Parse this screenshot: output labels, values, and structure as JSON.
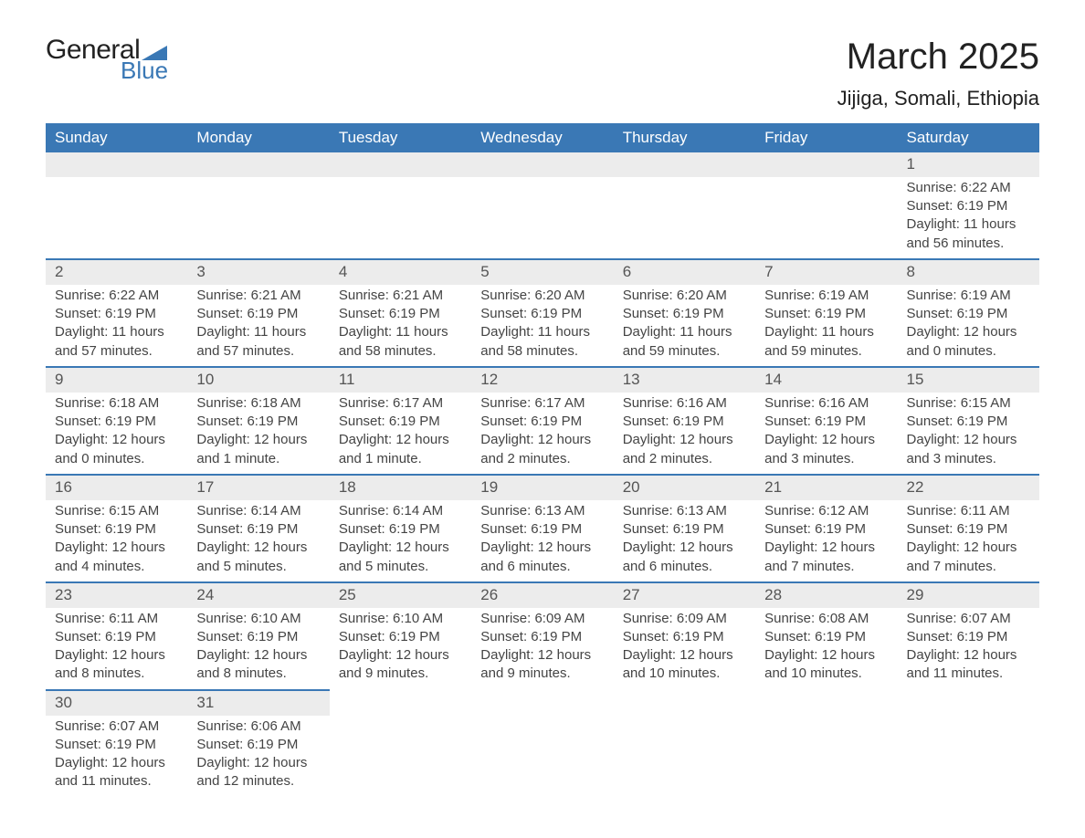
{
  "logo": {
    "text_general": "General",
    "text_blue": "Blue",
    "mark_color": "#3a78b5"
  },
  "header": {
    "month_title": "March 2025",
    "location": "Jijiga, Somali, Ethiopia"
  },
  "calendar": {
    "header_bg": "#3a78b5",
    "header_fg": "#ffffff",
    "daynum_bg": "#ececec",
    "row_border": "#3a78b5",
    "text_color": "#444444",
    "day_labels": [
      "Sunday",
      "Monday",
      "Tuesday",
      "Wednesday",
      "Thursday",
      "Friday",
      "Saturday"
    ],
    "weeks": [
      [
        null,
        null,
        null,
        null,
        null,
        null,
        {
          "n": "1",
          "sunrise": "Sunrise: 6:22 AM",
          "sunset": "Sunset: 6:19 PM",
          "day1": "Daylight: 11 hours",
          "day2": "and 56 minutes."
        }
      ],
      [
        {
          "n": "2",
          "sunrise": "Sunrise: 6:22 AM",
          "sunset": "Sunset: 6:19 PM",
          "day1": "Daylight: 11 hours",
          "day2": "and 57 minutes."
        },
        {
          "n": "3",
          "sunrise": "Sunrise: 6:21 AM",
          "sunset": "Sunset: 6:19 PM",
          "day1": "Daylight: 11 hours",
          "day2": "and 57 minutes."
        },
        {
          "n": "4",
          "sunrise": "Sunrise: 6:21 AM",
          "sunset": "Sunset: 6:19 PM",
          "day1": "Daylight: 11 hours",
          "day2": "and 58 minutes."
        },
        {
          "n": "5",
          "sunrise": "Sunrise: 6:20 AM",
          "sunset": "Sunset: 6:19 PM",
          "day1": "Daylight: 11 hours",
          "day2": "and 58 minutes."
        },
        {
          "n": "6",
          "sunrise": "Sunrise: 6:20 AM",
          "sunset": "Sunset: 6:19 PM",
          "day1": "Daylight: 11 hours",
          "day2": "and 59 minutes."
        },
        {
          "n": "7",
          "sunrise": "Sunrise: 6:19 AM",
          "sunset": "Sunset: 6:19 PM",
          "day1": "Daylight: 11 hours",
          "day2": "and 59 minutes."
        },
        {
          "n": "8",
          "sunrise": "Sunrise: 6:19 AM",
          "sunset": "Sunset: 6:19 PM",
          "day1": "Daylight: 12 hours",
          "day2": "and 0 minutes."
        }
      ],
      [
        {
          "n": "9",
          "sunrise": "Sunrise: 6:18 AM",
          "sunset": "Sunset: 6:19 PM",
          "day1": "Daylight: 12 hours",
          "day2": "and 0 minutes."
        },
        {
          "n": "10",
          "sunrise": "Sunrise: 6:18 AM",
          "sunset": "Sunset: 6:19 PM",
          "day1": "Daylight: 12 hours",
          "day2": "and 1 minute."
        },
        {
          "n": "11",
          "sunrise": "Sunrise: 6:17 AM",
          "sunset": "Sunset: 6:19 PM",
          "day1": "Daylight: 12 hours",
          "day2": "and 1 minute."
        },
        {
          "n": "12",
          "sunrise": "Sunrise: 6:17 AM",
          "sunset": "Sunset: 6:19 PM",
          "day1": "Daylight: 12 hours",
          "day2": "and 2 minutes."
        },
        {
          "n": "13",
          "sunrise": "Sunrise: 6:16 AM",
          "sunset": "Sunset: 6:19 PM",
          "day1": "Daylight: 12 hours",
          "day2": "and 2 minutes."
        },
        {
          "n": "14",
          "sunrise": "Sunrise: 6:16 AM",
          "sunset": "Sunset: 6:19 PM",
          "day1": "Daylight: 12 hours",
          "day2": "and 3 minutes."
        },
        {
          "n": "15",
          "sunrise": "Sunrise: 6:15 AM",
          "sunset": "Sunset: 6:19 PM",
          "day1": "Daylight: 12 hours",
          "day2": "and 3 minutes."
        }
      ],
      [
        {
          "n": "16",
          "sunrise": "Sunrise: 6:15 AM",
          "sunset": "Sunset: 6:19 PM",
          "day1": "Daylight: 12 hours",
          "day2": "and 4 minutes."
        },
        {
          "n": "17",
          "sunrise": "Sunrise: 6:14 AM",
          "sunset": "Sunset: 6:19 PM",
          "day1": "Daylight: 12 hours",
          "day2": "and 5 minutes."
        },
        {
          "n": "18",
          "sunrise": "Sunrise: 6:14 AM",
          "sunset": "Sunset: 6:19 PM",
          "day1": "Daylight: 12 hours",
          "day2": "and 5 minutes."
        },
        {
          "n": "19",
          "sunrise": "Sunrise: 6:13 AM",
          "sunset": "Sunset: 6:19 PM",
          "day1": "Daylight: 12 hours",
          "day2": "and 6 minutes."
        },
        {
          "n": "20",
          "sunrise": "Sunrise: 6:13 AM",
          "sunset": "Sunset: 6:19 PM",
          "day1": "Daylight: 12 hours",
          "day2": "and 6 minutes."
        },
        {
          "n": "21",
          "sunrise": "Sunrise: 6:12 AM",
          "sunset": "Sunset: 6:19 PM",
          "day1": "Daylight: 12 hours",
          "day2": "and 7 minutes."
        },
        {
          "n": "22",
          "sunrise": "Sunrise: 6:11 AM",
          "sunset": "Sunset: 6:19 PM",
          "day1": "Daylight: 12 hours",
          "day2": "and 7 minutes."
        }
      ],
      [
        {
          "n": "23",
          "sunrise": "Sunrise: 6:11 AM",
          "sunset": "Sunset: 6:19 PM",
          "day1": "Daylight: 12 hours",
          "day2": "and 8 minutes."
        },
        {
          "n": "24",
          "sunrise": "Sunrise: 6:10 AM",
          "sunset": "Sunset: 6:19 PM",
          "day1": "Daylight: 12 hours",
          "day2": "and 8 minutes."
        },
        {
          "n": "25",
          "sunrise": "Sunrise: 6:10 AM",
          "sunset": "Sunset: 6:19 PM",
          "day1": "Daylight: 12 hours",
          "day2": "and 9 minutes."
        },
        {
          "n": "26",
          "sunrise": "Sunrise: 6:09 AM",
          "sunset": "Sunset: 6:19 PM",
          "day1": "Daylight: 12 hours",
          "day2": "and 9 minutes."
        },
        {
          "n": "27",
          "sunrise": "Sunrise: 6:09 AM",
          "sunset": "Sunset: 6:19 PM",
          "day1": "Daylight: 12 hours",
          "day2": "and 10 minutes."
        },
        {
          "n": "28",
          "sunrise": "Sunrise: 6:08 AM",
          "sunset": "Sunset: 6:19 PM",
          "day1": "Daylight: 12 hours",
          "day2": "and 10 minutes."
        },
        {
          "n": "29",
          "sunrise": "Sunrise: 6:07 AM",
          "sunset": "Sunset: 6:19 PM",
          "day1": "Daylight: 12 hours",
          "day2": "and 11 minutes."
        }
      ],
      [
        {
          "n": "30",
          "sunrise": "Sunrise: 6:07 AM",
          "sunset": "Sunset: 6:19 PM",
          "day1": "Daylight: 12 hours",
          "day2": "and 11 minutes."
        },
        {
          "n": "31",
          "sunrise": "Sunrise: 6:06 AM",
          "sunset": "Sunset: 6:19 PM",
          "day1": "Daylight: 12 hours",
          "day2": "and 12 minutes."
        },
        null,
        null,
        null,
        null,
        null
      ]
    ]
  }
}
